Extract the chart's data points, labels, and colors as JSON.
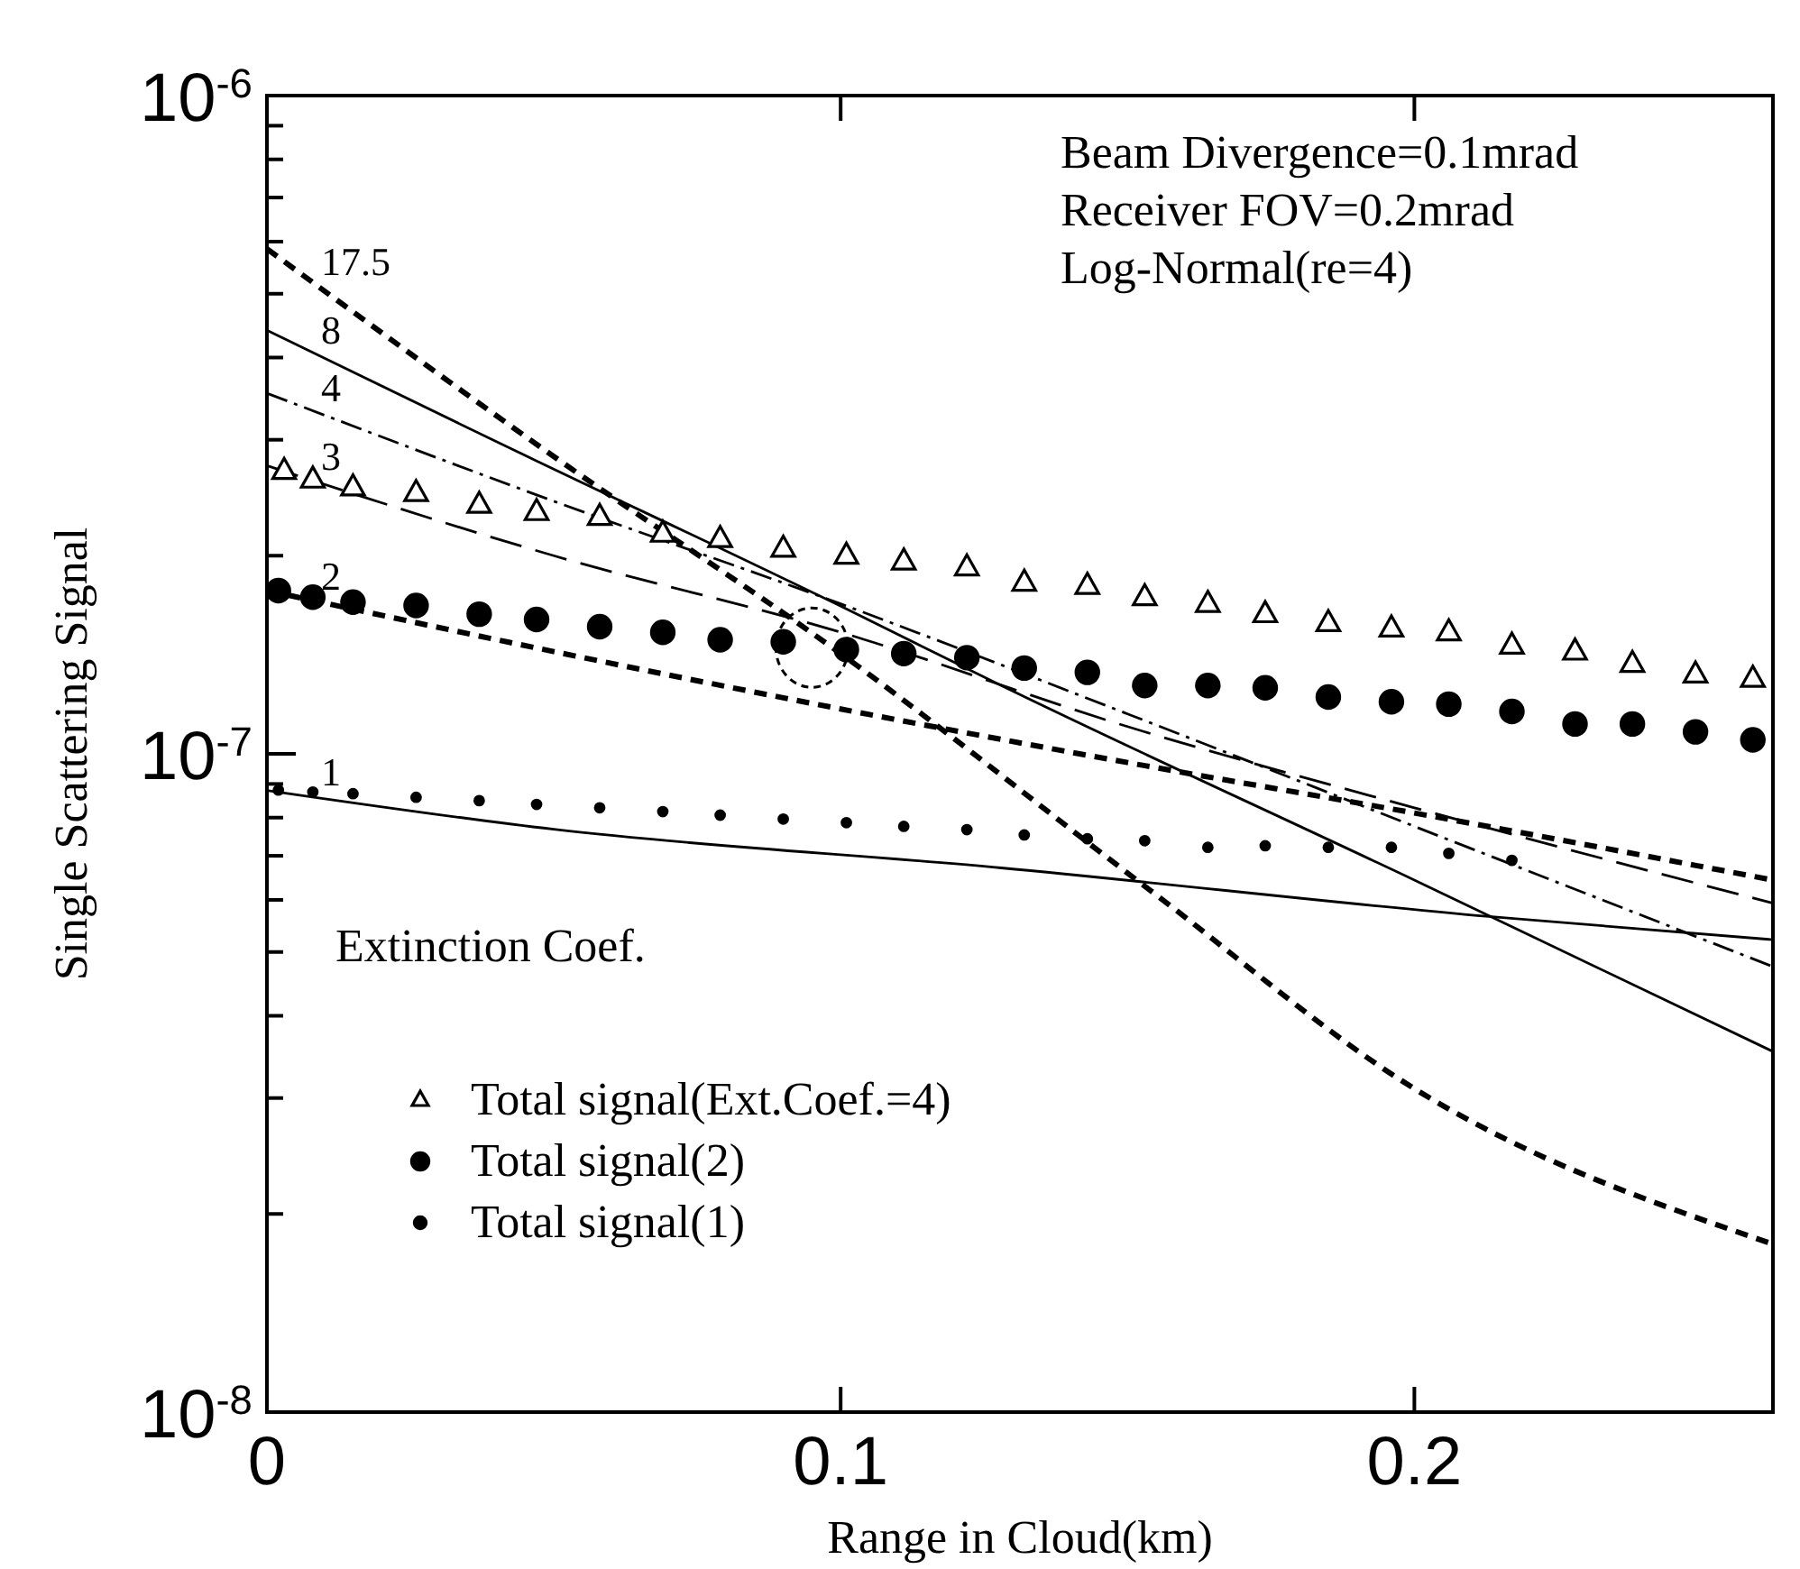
{
  "chart_data": {
    "type": "line",
    "xlabel": "Range in Cloud(km)",
    "ylabel": "Single Scattering Signal",
    "log": "y",
    "xlim": [
      0,
      0.2625
    ],
    "xticks": [
      0,
      0.1,
      0.2
    ],
    "ylim": [
      1e-08,
      1e-06
    ],
    "yticks": [
      {
        "value": 1e-08,
        "label": "10$^{-8}$"
      },
      {
        "value": 2e-08,
        "label": null
      },
      {
        "value": 3e-08,
        "label": null
      },
      {
        "value": 4e-08,
        "label": null
      },
      {
        "value": 5e-08,
        "label": null
      },
      {
        "value": 6e-08,
        "label": null
      },
      {
        "value": 7e-08,
        "label": null
      },
      {
        "value": 8e-08,
        "label": null
      },
      {
        "value": 9e-08,
        "label": null
      },
      {
        "value": 1e-07,
        "label": "10$^{-7}$"
      },
      {
        "value": 2e-07,
        "label": null
      },
      {
        "value": 3e-07,
        "label": null
      },
      {
        "value": 4e-07,
        "label": null
      },
      {
        "value": 5e-07,
        "label": null
      },
      {
        "value": 6e-07,
        "label": null
      },
      {
        "value": 7e-07,
        "label": null
      },
      {
        "value": 8e-07,
        "label": null
      },
      {
        "value": 9e-07,
        "label": null
      },
      {
        "value": 1e-06,
        "label": "10$^{-6}$"
      }
    ],
    "grid": false,
    "legend": "bottom left",
    "annotations": [
      "Beam Divergence=0.1mrad",
      "Receiver FOV=0.2mrad",
      "Log-Normal(re=4)",
      "Extinction Coef."
    ],
    "series": [
      {
        "name": "17.5",
        "color": "#000000",
        "line_style": "dashed",
        "x": [
          0,
          0.05,
          0.1,
          0.154,
          0.2,
          0.2625
        ],
        "values": [
          5.85e-07,
          2.83e-07,
          1.42e-07,
          6.2e-08,
          3.1e-08,
          1.8e-08
        ]
      },
      {
        "name": "8",
        "color": "#000000",
        "line_style": "solid",
        "x": [
          0,
          0.04,
          0.101,
          0.128,
          0.2,
          0.2625
        ],
        "values": [
          4.4e-07,
          2.98e-07,
          1.66e-07,
          1.27e-07,
          6.43e-08,
          3.53e-08
        ]
      },
      {
        "name": "4",
        "color": "#000000",
        "line_style": "dashdot",
        "x": [
          0,
          0.05,
          0.1,
          0.15,
          0.2,
          0.2625
        ],
        "values": [
          3.53e-07,
          2.42e-07,
          1.69e-07,
          1.15e-07,
          7.76e-08,
          4.75e-08
        ]
      },
      {
        "name": "3",
        "color": "#000000",
        "line_style": "longdash",
        "x": [
          0,
          0.05,
          0.1,
          0.15,
          0.2,
          0.2625
        ],
        "values": [
          2.74e-07,
          2e-07,
          1.53e-07,
          1.1e-07,
          8.28e-08,
          5.93e-08
        ]
      },
      {
        "name": "2",
        "color": "#000000",
        "line_style": "dashed",
        "x": [
          0,
          0.05,
          0.1,
          0.15,
          0.2,
          0.2625
        ],
        "values": [
          1.77e-07,
          1.43e-07,
          1.17e-07,
          9.7e-08,
          8.13e-08,
          6.43e-08
        ]
      },
      {
        "name": "1",
        "color": "#000000",
        "line_style": "solid",
        "x": [
          0,
          0.05,
          0.128,
          0.213,
          0.2625
        ],
        "values": [
          8.8e-08,
          7.68e-08,
          6.71e-08,
          5.66e-08,
          5.22e-08
        ]
      },
      {
        "name": "Total signal(Ext.Coef.=4)",
        "type": "scatter",
        "marker": "triangle",
        "color": "#000000",
        "x": [
          0.003,
          0.008,
          0.015,
          0.026,
          0.037,
          0.047,
          0.058,
          0.069,
          0.079,
          0.09,
          0.101,
          0.111,
          0.122,
          0.132,
          0.143,
          0.153,
          0.164,
          0.174,
          0.185,
          0.196,
          0.206,
          0.217,
          0.228,
          0.238,
          0.249,
          0.259
        ],
        "values": [
          2.69e-07,
          2.61e-07,
          2.54e-07,
          2.49e-07,
          2.39e-07,
          2.33e-07,
          2.29e-07,
          2.16e-07,
          2.12e-07,
          2.05e-07,
          2e-07,
          1.96e-07,
          1.92e-07,
          1.82e-07,
          1.8e-07,
          1.73e-07,
          1.69e-07,
          1.63e-07,
          1.58e-07,
          1.55e-07,
          1.53e-07,
          1.46e-07,
          1.43e-07,
          1.37e-07,
          1.32e-07,
          1.3e-07
        ]
      },
      {
        "name": "Total signal(2)",
        "type": "scatter",
        "marker": "circle",
        "color": "#000000",
        "x": [
          0.002,
          0.008,
          0.015,
          0.026,
          0.037,
          0.047,
          0.058,
          0.069,
          0.079,
          0.09,
          0.101,
          0.111,
          0.122,
          0.132,
          0.143,
          0.153,
          0.164,
          0.174,
          0.185,
          0.196,
          0.206,
          0.217,
          0.228,
          0.238,
          0.249,
          0.259
        ],
        "values": [
          1.77e-07,
          1.73e-07,
          1.7e-07,
          1.68e-07,
          1.63e-07,
          1.6e-07,
          1.56e-07,
          1.53e-07,
          1.49e-07,
          1.48e-07,
          1.44e-07,
          1.42e-07,
          1.4e-07,
          1.35e-07,
          1.33e-07,
          1.27e-07,
          1.27e-07,
          1.26e-07,
          1.22e-07,
          1.2e-07,
          1.19e-07,
          1.16e-07,
          1.11e-07,
          1.11e-07,
          1.08e-07,
          1.05e-07
        ]
      },
      {
        "name": "Total signal(1)",
        "type": "scatter",
        "marker": "circle",
        "color": "#000000",
        "x": [
          0.002,
          0.008,
          0.015,
          0.026,
          0.037,
          0.047,
          0.058,
          0.069,
          0.079,
          0.09,
          0.101,
          0.111,
          0.122,
          0.132,
          0.143,
          0.153,
          0.164,
          0.174,
          0.185,
          0.196,
          0.206,
          0.217
        ],
        "values": [
          8.81e-08,
          8.75e-08,
          8.7e-08,
          8.59e-08,
          8.49e-08,
          8.38e-08,
          8.28e-08,
          8.17e-08,
          8.07e-08,
          7.96e-08,
          7.86e-08,
          7.76e-08,
          7.67e-08,
          7.53e-08,
          7.43e-08,
          7.38e-08,
          7.21e-08,
          7.25e-08,
          7.21e-08,
          7.21e-08,
          7.06e-08,
          6.89e-08
        ]
      }
    ]
  }
}
